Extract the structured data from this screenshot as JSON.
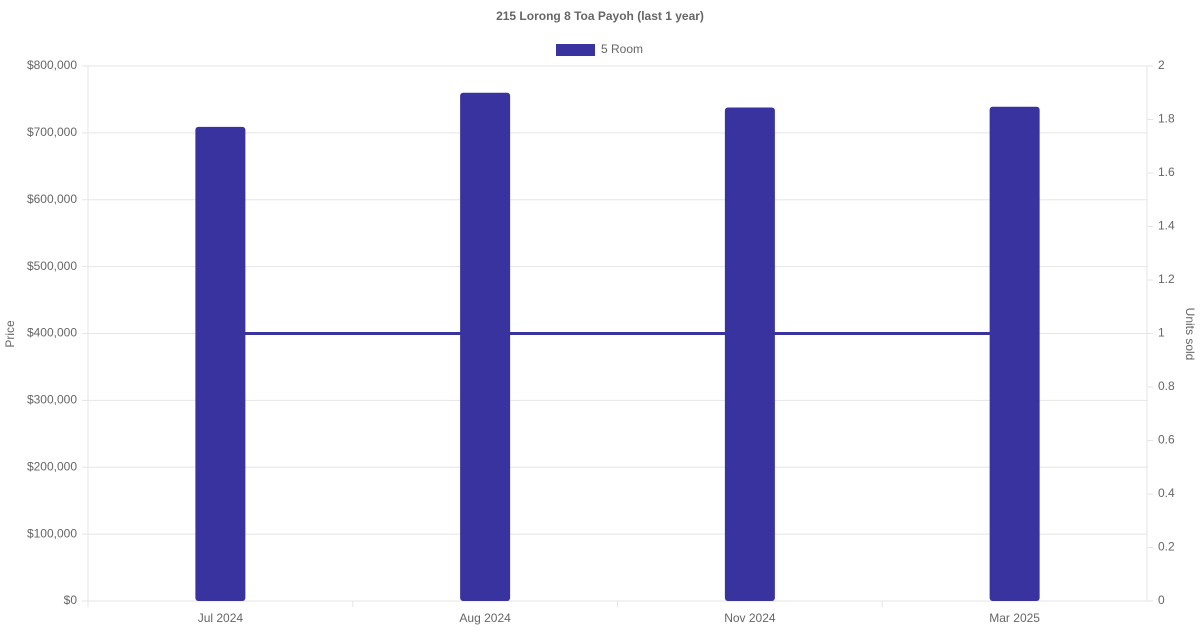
{
  "chart_data": {
    "type": "bar-line",
    "title": "215 Lorong 8 Toa Payoh (last 1 year)",
    "categories": [
      "Jul 2024",
      "Aug 2024",
      "Nov 2024",
      "Mar 2025"
    ],
    "series": [
      {
        "name": "5 Room",
        "type": "bar",
        "color": "#38339e",
        "values": [
          709000,
          760000,
          738000,
          739000
        ]
      },
      {
        "type": "line",
        "axis": "y2",
        "color": "#38339e",
        "values": [
          1,
          1,
          1,
          1
        ]
      }
    ],
    "y_label": "Price",
    "y2_label": "Units sold",
    "ylim": [
      0,
      800000
    ],
    "yticks": [
      {
        "value": 0,
        "label": "$0"
      },
      {
        "value": 100000,
        "label": "$100,000"
      },
      {
        "value": 200000,
        "label": "$200,000"
      },
      {
        "value": 300000,
        "label": "$300,000"
      },
      {
        "value": 400000,
        "label": "$400,000"
      },
      {
        "value": 500000,
        "label": "$500,000"
      },
      {
        "value": 600000,
        "label": "$600,000"
      },
      {
        "value": 700000,
        "label": "$700,000"
      },
      {
        "value": 800000,
        "label": "$800,000"
      }
    ],
    "y2lim": [
      0,
      2
    ],
    "y2ticks": [
      0,
      0.2,
      0.4,
      0.6,
      0.8,
      1,
      1.2,
      1.4,
      1.6,
      1.8,
      2
    ],
    "grid": true,
    "legend": "top"
  }
}
